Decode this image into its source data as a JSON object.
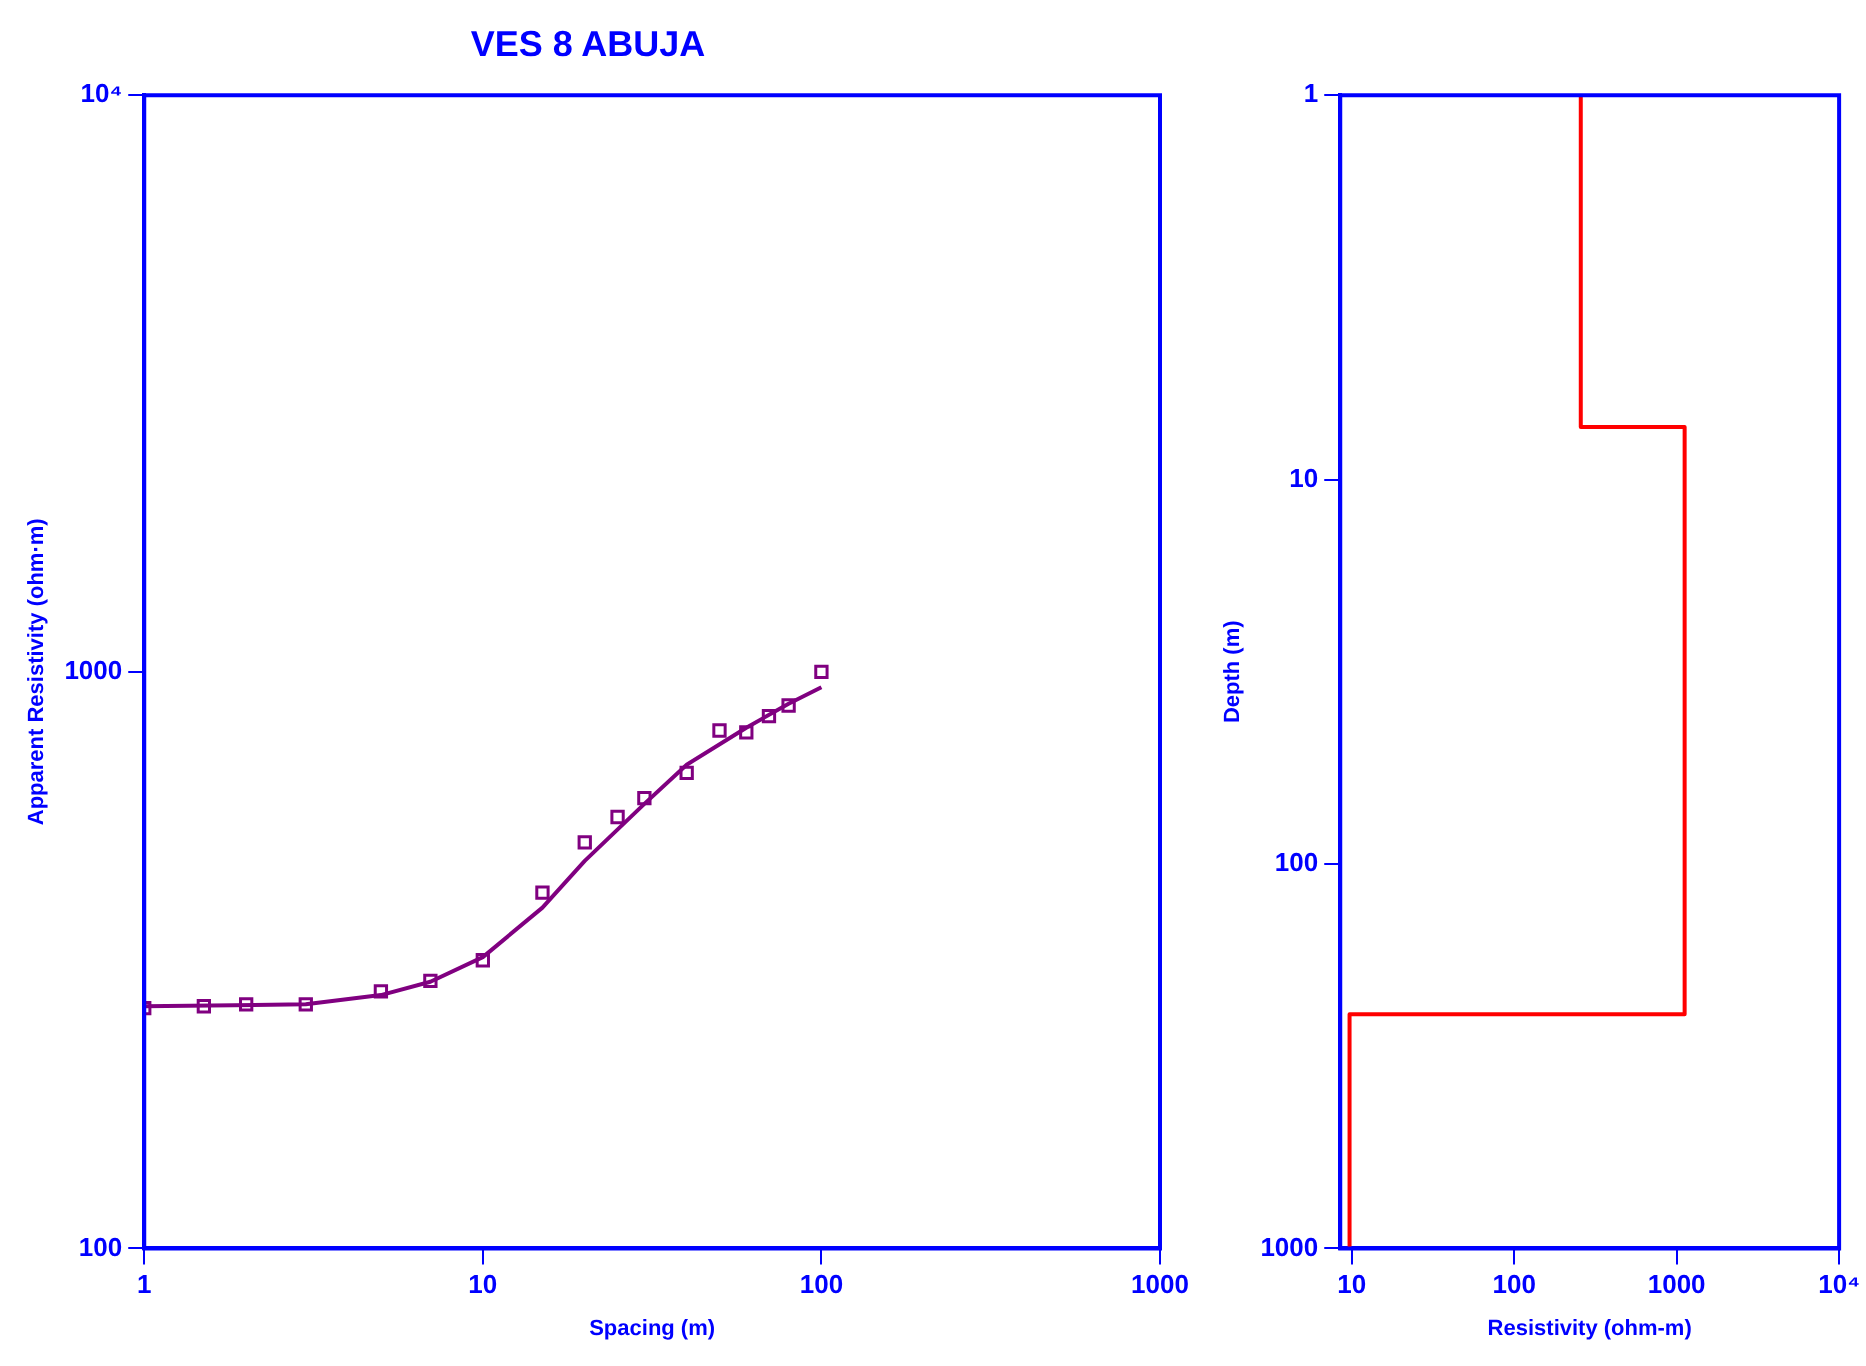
{
  "chart_data": [
    {
      "type": "scatter",
      "title": "VES 8 ABUJA",
      "xlabel": "Spacing (m)",
      "ylabel": "Apparent Resistivity (ohm·m)",
      "log": "xy",
      "grid": false,
      "legend": false,
      "xlim": [
        1,
        1000
      ],
      "xticks": [
        1,
        10,
        100,
        1000
      ],
      "ylim": [
        100,
        10000
      ],
      "yticks": [
        100,
        1000,
        {
          "value": 10000,
          "label": "10⁴"
        }
      ],
      "series": [
        {
          "marker": "square",
          "color": "#800080",
          "x": [
            1,
            1.5,
            2,
            3,
            5,
            7,
            10,
            15,
            20,
            25,
            30,
            40,
            50,
            60,
            70,
            80,
            100
          ],
          "values": [
            261,
            263,
            265,
            265,
            279,
            291,
            316,
            414,
            506,
            560,
            604,
            668,
            791,
            785,
            838,
            874,
            1000
          ]
        },
        {
          "type": "line",
          "marker": "none",
          "color": "#800080",
          "x": [
            1,
            3,
            5,
            7,
            10,
            15,
            20,
            30,
            40,
            60,
            80,
            100
          ],
          "values": [
            263,
            265,
            275,
            290,
            320,
            390,
            470,
            590,
            690,
            800,
            880,
            940
          ]
        }
      ]
    },
    {
      "type": "line",
      "xlabel": "Resistivity (ohm-m)",
      "ylabel": "Depth (m)",
      "log": "xy",
      "grid": false,
      "legend": false,
      "marker": "none",
      "xlim": [
        8.5,
        10000
      ],
      "xticks": [
        10,
        100,
        1000,
        {
          "value": 10000,
          "label": "10⁴"
        }
      ],
      "ylim": [
        1000,
        1
      ],
      "yticks": [
        1,
        10,
        100,
        1000
      ],
      "series": [
        {
          "color": "#ff0000",
          "x": [
            257,
            257,
            1120,
            1120,
            9.7,
            9.7
          ],
          "values": [
            1,
            7.3,
            7.3,
            246,
            246,
            1000
          ]
        }
      ]
    }
  ]
}
